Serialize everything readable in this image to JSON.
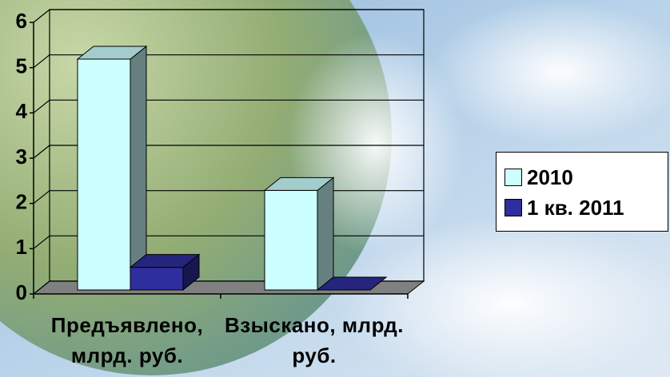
{
  "chart_data": {
    "type": "bar3d",
    "categories": [
      "Предъявлено, млрд. руб.",
      "Взыскано, млрд. руб."
    ],
    "series": [
      {
        "name": "2010",
        "color": "#ccffff",
        "values": [
          5.1,
          2.2
        ]
      },
      {
        "name": "1 кв. 2011",
        "color": "#2e2e9e",
        "values": [
          0.5,
          0
        ]
      }
    ],
    "ylim": [
      0,
      6
    ],
    "yticks": [
      0,
      1,
      2,
      3,
      4,
      5,
      6
    ],
    "grid": true,
    "legend": "right"
  }
}
